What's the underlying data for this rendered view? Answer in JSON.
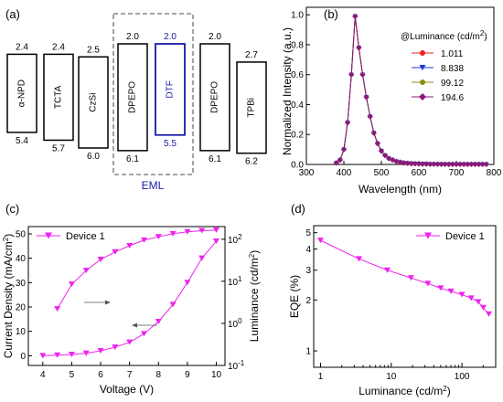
{
  "chart_data": [
    {
      "panel_label": "(a)",
      "type": "diagram",
      "layers": [
        {
          "name": "α-NPD",
          "lumo": "2.4",
          "homo": "5.4",
          "lumo_v": 2.4,
          "homo_v": 5.4
        },
        {
          "name": "TCTA",
          "lumo": "2.4",
          "homo": "5.7",
          "lumo_v": 2.4,
          "homo_v": 5.7
        },
        {
          "name": "CzSi",
          "lumo": "2.5",
          "homo": "6.0",
          "lumo_v": 2.5,
          "homo_v": 6.0
        },
        {
          "name": "DPEPO",
          "lumo": "2.0",
          "homo": "6.1",
          "lumo_v": 2.0,
          "homo_v": 6.1
        },
        {
          "name": "DTF",
          "lumo": "2.0",
          "homo": "5.5",
          "lumo_v": 2.0,
          "homo_v": 5.5
        },
        {
          "name": "DPEPO",
          "lumo": "2.0",
          "homo": "6.1",
          "lumo_v": 2.0,
          "homo_v": 6.1
        },
        {
          "name": "TPBi",
          "lumo": "2.7",
          "homo": "6.2",
          "lumo_v": 2.7,
          "homo_v": 6.2
        }
      ],
      "eml_label": "EML",
      "colors": {
        "default": "#000000",
        "dtf": "#1a1aaa",
        "eml_box": "#8a8a8a"
      }
    },
    {
      "panel_label": "(b)",
      "type": "line",
      "xlabel": "Wavelength (nm)",
      "ylabel": "Normalized Intensity (a.u.)",
      "xlim": [
        300,
        800
      ],
      "ylim": [
        0,
        1.05
      ],
      "xticks": [
        "300",
        "400",
        "500",
        "600",
        "700",
        "800"
      ],
      "yticks": [
        "0.0",
        "0.2",
        "0.4",
        "0.6",
        "0.8",
        "1.0"
      ],
      "legend_title": "@Luminance (cd/m²)",
      "legend_position": "top-right",
      "x": [
        380,
        390,
        400,
        410,
        420,
        430,
        440,
        450,
        460,
        470,
        480,
        490,
        500,
        510,
        520,
        530,
        540,
        550,
        560,
        570,
        580,
        590,
        600,
        610,
        620,
        630,
        640,
        650,
        660,
        670,
        680,
        690,
        700,
        710,
        720,
        730,
        740,
        750,
        760,
        770,
        780
      ],
      "series": [
        {
          "name": "1.011",
          "color": "#e8232a",
          "marker": "circle",
          "values": [
            0.01,
            0.03,
            0.1,
            0.28,
            0.6,
            0.99,
            0.78,
            0.6,
            0.45,
            0.32,
            0.21,
            0.14,
            0.09,
            0.06,
            0.04,
            0.03,
            0.02,
            0.015,
            0.01,
            0.008,
            0.006,
            0.005,
            0.004,
            0.003,
            0.003,
            0.002,
            0.002,
            0.002,
            0.001,
            0.001,
            0.001,
            0.001,
            0.001,
            0.001,
            0.001,
            0.001,
            0.001,
            0.001,
            0.001,
            0.001,
            0.001
          ]
        },
        {
          "name": "8.838",
          "color": "#1e3ad6",
          "marker": "triangle-down",
          "values": [
            0.01,
            0.03,
            0.1,
            0.28,
            0.6,
            0.99,
            0.78,
            0.6,
            0.45,
            0.32,
            0.21,
            0.14,
            0.09,
            0.06,
            0.04,
            0.03,
            0.02,
            0.015,
            0.01,
            0.008,
            0.006,
            0.005,
            0.004,
            0.003,
            0.003,
            0.002,
            0.002,
            0.002,
            0.001,
            0.001,
            0.001,
            0.001,
            0.001,
            0.001,
            0.001,
            0.001,
            0.001,
            0.001,
            0.001,
            0.001,
            0.001
          ]
        },
        {
          "name": "99.12",
          "color": "#8c8c17",
          "marker": "circle",
          "values": [
            0.01,
            0.03,
            0.1,
            0.28,
            0.6,
            0.99,
            0.78,
            0.6,
            0.45,
            0.32,
            0.21,
            0.14,
            0.09,
            0.06,
            0.04,
            0.03,
            0.02,
            0.015,
            0.01,
            0.008,
            0.006,
            0.005,
            0.004,
            0.003,
            0.003,
            0.002,
            0.002,
            0.002,
            0.001,
            0.001,
            0.001,
            0.001,
            0.001,
            0.001,
            0.001,
            0.001,
            0.001,
            0.001,
            0.001,
            0.001,
            0.001
          ]
        },
        {
          "name": "194.6",
          "color": "#8a1a78",
          "marker": "diamond",
          "values": [
            0.01,
            0.03,
            0.1,
            0.28,
            0.6,
            0.99,
            0.78,
            0.6,
            0.45,
            0.32,
            0.21,
            0.14,
            0.09,
            0.06,
            0.04,
            0.03,
            0.02,
            0.015,
            0.01,
            0.008,
            0.006,
            0.005,
            0.004,
            0.003,
            0.003,
            0.002,
            0.002,
            0.002,
            0.001,
            0.001,
            0.001,
            0.001,
            0.001,
            0.001,
            0.001,
            0.001,
            0.001,
            0.001,
            0.001,
            0.001,
            0.001
          ]
        }
      ]
    },
    {
      "panel_label": "(c)",
      "type": "line",
      "xlabel": "Voltage (V)",
      "ylabel": "Current Density (mA/cm²)",
      "ylabel_right": "Luminance (cd/m²)",
      "xlim": [
        3.5,
        10.3
      ],
      "ylim": [
        -4,
        53
      ],
      "ylim_right_log": [
        0.1,
        200
      ],
      "xticks": [
        "4",
        "5",
        "6",
        "7",
        "8",
        "9",
        "10"
      ],
      "yticks": [
        "0",
        "10",
        "20",
        "30",
        "40",
        "50"
      ],
      "yticks_right": [
        {
          "base": "10",
          "exp": "-1"
        },
        {
          "base": "10",
          "exp": "0"
        },
        {
          "base": "10",
          "exp": "1"
        },
        {
          "base": "10",
          "exp": "2"
        }
      ],
      "legend_position": "top-left",
      "color": "#ee22ee",
      "series": [
        {
          "name": "Device 1",
          "axis": "left",
          "x": [
            4.0,
            4.5,
            5.0,
            5.5,
            6.0,
            6.5,
            7.0,
            7.5,
            8.0,
            8.5,
            9.0,
            9.5,
            10.0
          ],
          "values": [
            0.0,
            0.2,
            0.5,
            1.0,
            2.0,
            3.5,
            5.5,
            9.0,
            14.0,
            21.0,
            30.0,
            40.0,
            47.0
          ]
        },
        {
          "name": "",
          "axis": "right",
          "x": [
            4.5,
            5.0,
            5.5,
            6.0,
            6.5,
            7.0,
            7.5,
            8.0,
            8.5,
            9.0,
            9.5,
            10.0
          ],
          "values": [
            2.2,
            8.5,
            18,
            33,
            50,
            70,
            95,
            115,
            135,
            150,
            160,
            165
          ]
        }
      ]
    },
    {
      "panel_label": "(d)",
      "type": "line",
      "xlabel": "Luminance (cd/m²)",
      "ylabel": "EQE (%)",
      "xscale": "log",
      "yscale": "log",
      "xlim": [
        0.8,
        300
      ],
      "ylim": [
        0.8,
        5.5
      ],
      "xticks": [
        "1",
        "10",
        "100"
      ],
      "yticks": [
        "1",
        "2",
        "3",
        "4",
        "5"
      ],
      "legend_position": "top-right",
      "color": "#ee22ee",
      "series": [
        {
          "name": "Device 1",
          "x": [
            1.0,
            3.5,
            8.8,
            19,
            33,
            50,
            70,
            100,
            135,
            170,
            200,
            240
          ],
          "values": [
            4.5,
            3.5,
            3.0,
            2.7,
            2.5,
            2.35,
            2.25,
            2.15,
            2.05,
            1.95,
            1.8,
            1.65
          ]
        }
      ]
    }
  ]
}
